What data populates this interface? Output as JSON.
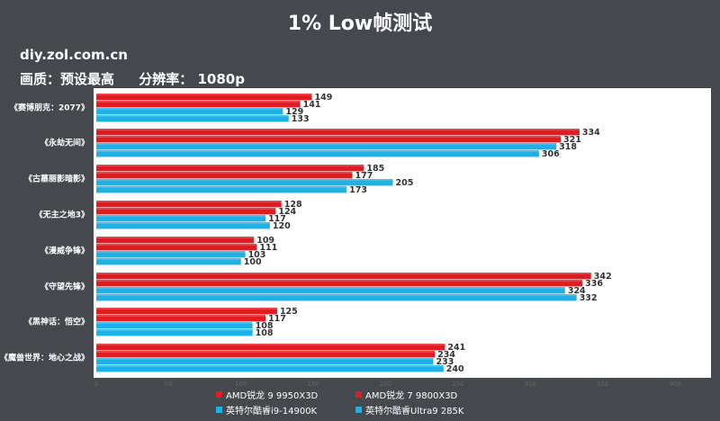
{
  "title": "1% Low帧测试",
  "watermark": "diy.zol.com.cn",
  "settings": {
    "quality": "画质：预设最高",
    "resolution": "分辨率： 1080p"
  },
  "colors": {
    "background": "#45494e",
    "plot_background": "#ffffff",
    "red": "#e01c22",
    "blue": "#1fb0e6"
  },
  "chart_data": {
    "type": "bar",
    "orientation": "horizontal",
    "categories": [
      "《赛博朋克：2077》",
      "《永劫无间》",
      "《古墓丽影暗影》",
      "《无主之地3》",
      "《漫威争锋》",
      "《守望先锋》",
      "《黑神话：悟空》",
      "《魔兽世界：地心之战》"
    ],
    "series": [
      {
        "name": "AMD锐龙 9 9950X3D",
        "color": "#e01c22",
        "values": [
          149,
          334,
          185,
          128,
          109,
          342,
          125,
          241
        ]
      },
      {
        "name": "AMD锐龙 7 9800X3D",
        "color": "#e01c22",
        "values": [
          141,
          321,
          177,
          124,
          111,
          336,
          117,
          234
        ]
      },
      {
        "name": "英特尔酷睿i9-14900K",
        "color": "#1fb0e6",
        "values": [
          129,
          318,
          205,
          117,
          103,
          324,
          108,
          233
        ]
      },
      {
        "name": "英特尔酷睿Ultra9 285K",
        "color": "#1fb0e6",
        "values": [
          133,
          306,
          173,
          120,
          100,
          332,
          108,
          240
        ]
      }
    ],
    "xlim": [
      0,
      400
    ],
    "xticks": [
      0,
      50,
      100,
      150,
      200,
      250,
      300,
      350,
      400
    ],
    "legend_position": "bottom",
    "grid": false
  }
}
